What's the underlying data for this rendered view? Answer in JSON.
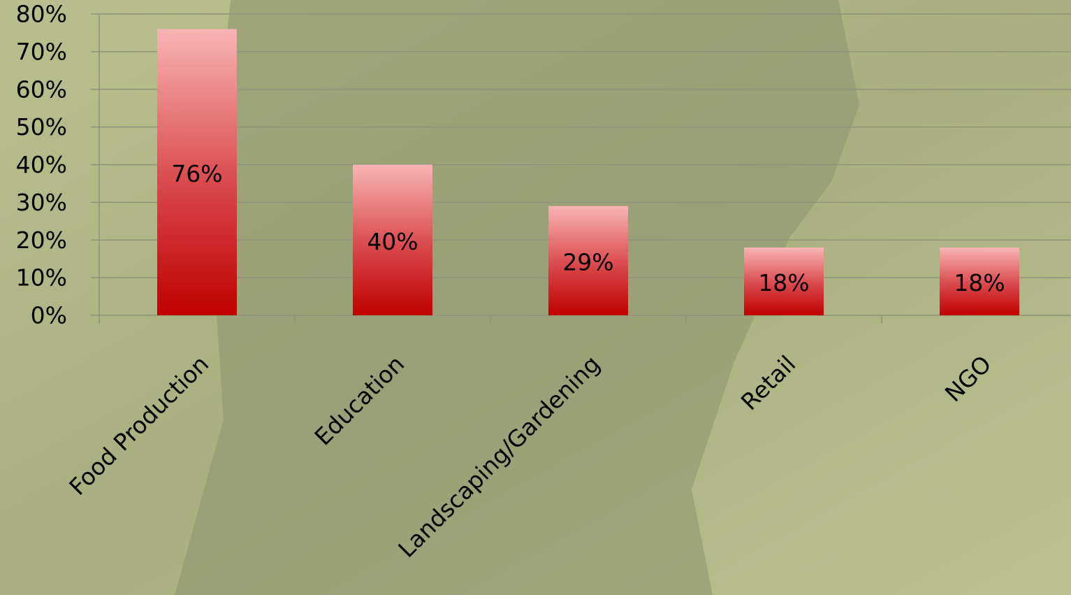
{
  "chart_data": {
    "type": "bar",
    "categories": [
      "Food Production",
      "Education",
      "Landscaping/Gardening",
      "Retail",
      "NGO"
    ],
    "values": [
      76,
      40,
      29,
      18,
      18
    ],
    "value_labels": [
      "76%",
      "40%",
      "29%",
      "18%",
      "18%"
    ],
    "color": "#c00000",
    "ylim": [
      0,
      80
    ],
    "yticks": [
      {
        "value": 0,
        "label": "0%"
      },
      {
        "value": 10,
        "label": "10%"
      },
      {
        "value": 20,
        "label": "20%"
      },
      {
        "value": 30,
        "label": "30%"
      },
      {
        "value": 40,
        "label": "40%"
      },
      {
        "value": 50,
        "label": "50%"
      },
      {
        "value": 60,
        "label": "60%"
      },
      {
        "value": 70,
        "label": "70%"
      },
      {
        "value": 80,
        "label": "80%"
      }
    ],
    "grid": true
  }
}
